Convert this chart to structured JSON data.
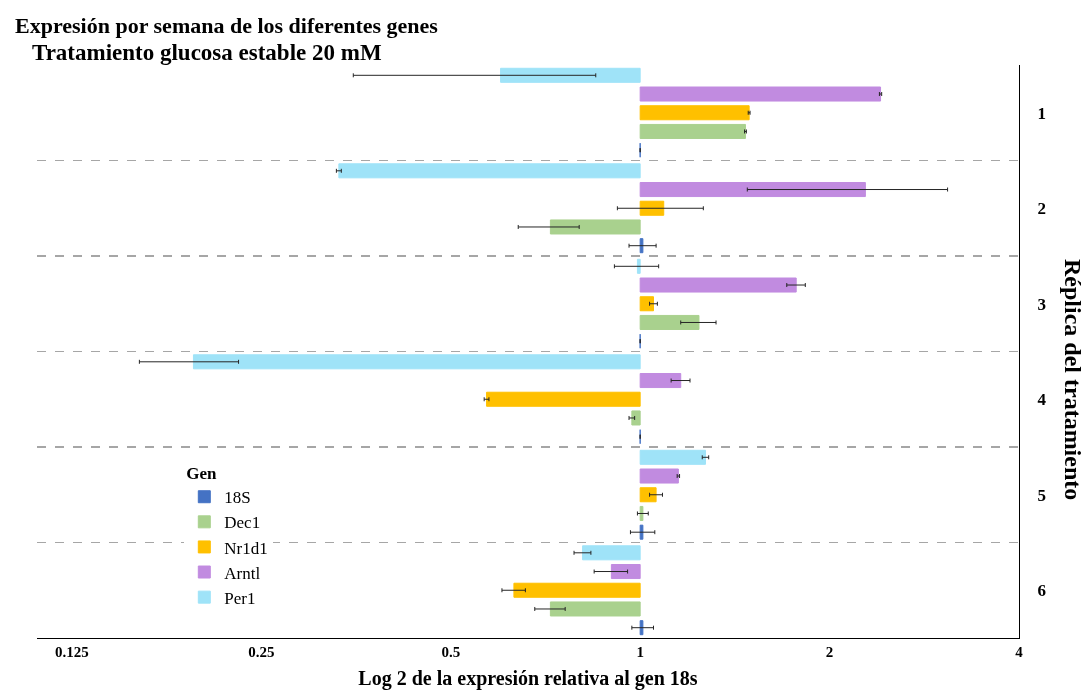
{
  "chart_data": {
    "type": "bar",
    "orientation": "horizontal",
    "title": "Expresión por semana de los diferentes genes",
    "subtitle": "Tratamiento glucosa estable 20 mM",
    "xlabel": "Log 2 de la expresión relativa al gen 18s",
    "ylabel": "Réplica del tratamiento",
    "legend_title": "Gen",
    "categories": [
      "1",
      "2",
      "3",
      "4",
      "5",
      "6"
    ],
    "log": "x",
    "xlim": [
      0.11,
      4
    ],
    "xticks": [
      0.125,
      0.25,
      0.5,
      1,
      2,
      4
    ],
    "grid": "y",
    "legend": "bottom left",
    "series": [
      {
        "name": "18S",
        "color": "#4472c4",
        "base": [
          1,
          1,
          1,
          1,
          1,
          1
        ],
        "values": [
          0,
          0.01,
          0,
          0,
          0.01,
          0.01
        ],
        "errors": [
          null,
          0.05,
          null,
          null,
          0.045,
          0.04
        ]
      },
      {
        "name": "Dec1",
        "color": "#a9d18e",
        "base": [
          1,
          1,
          1,
          1,
          1,
          1
        ],
        "values": [
          0.47,
          -0.28,
          0.24,
          -0.03,
          0.01,
          -0.28
        ],
        "errors": [
          0.005,
          0.08,
          0.08,
          0.01,
          0.02,
          0.04
        ]
      },
      {
        "name": "Nr1d1",
        "color": "#ffc000",
        "base": [
          1,
          1,
          1,
          1,
          1,
          1
        ],
        "values": [
          0.49,
          0.09,
          0.05,
          -0.43,
          0.06,
          -0.37
        ],
        "errors": [
          0.005,
          0.17,
          0.015,
          0.005,
          0.025,
          0.027
        ]
      },
      {
        "name": "Arntl",
        "color": "#c18be0",
        "base": [
          1,
          1,
          1,
          1,
          1,
          1
        ],
        "values": [
          1.41,
          1.28,
          0.77,
          0.16,
          0.15,
          -0.1
        ],
        "errors": [
          0.01,
          0.8,
          0.06,
          0.04,
          0.005,
          0.055
        ]
      },
      {
        "name": "Per1",
        "color": "#9fe3f8",
        "base": [
          1,
          1,
          1,
          1,
          1,
          1
        ],
        "values": [
          -0.4,
          -0.668,
          -0.01,
          -0.805,
          0.27,
          -0.19
        ],
        "errors": [
          0.25,
          0.003,
          0.08,
          0.035,
          0.015,
          0.025
        ]
      }
    ]
  }
}
